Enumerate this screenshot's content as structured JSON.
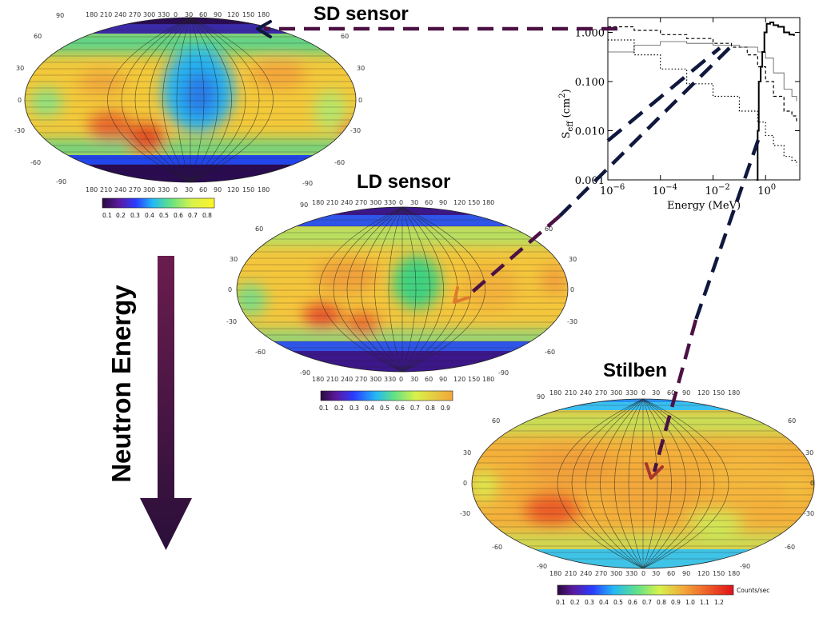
{
  "panels": {
    "sd": {
      "title": "SD sensor",
      "colorbar_ticks": [
        "0.1",
        "0.2",
        "0.3",
        "0.4",
        "0.5",
        "0.6",
        "0.7",
        "0.8"
      ]
    },
    "ld": {
      "title": "LD sensor",
      "colorbar_ticks": [
        "0.1",
        "0.2",
        "0.3",
        "0.4",
        "0.5",
        "0.6",
        "0.7",
        "0.8",
        "0.9"
      ]
    },
    "stilben": {
      "title": "Stilben",
      "colorbar_ticks": [
        "0.1",
        "0.2",
        "0.3",
        "0.4",
        "0.5",
        "0.6",
        "0.7",
        "0.8",
        "0.9",
        "1.0",
        "1.1",
        "1.2"
      ],
      "colorbar_unit": "Counts/sec"
    }
  },
  "map_axes": {
    "lon_ticks": [
      "180",
      "210",
      "240",
      "270",
      "300",
      "330",
      "0",
      "30",
      "60",
      "90",
      "120",
      "150",
      "180"
    ],
    "lat_ticks_left": [
      "90",
      "60",
      "30",
      "0",
      "-30",
      "-60",
      "-90"
    ],
    "lat_ticks_right": [
      "60",
      "30",
      "0",
      "-30",
      "-60",
      "-90"
    ]
  },
  "arrow_label": "Neutron Energy",
  "colors": {
    "arrow_top": "#6a1d4e",
    "arrow_bottom": "#2a0f3a",
    "dash_purple": "#4b1244",
    "dash_navy": "#10183e",
    "dash_orange": "#e07a2e"
  },
  "chart_data": {
    "type": "line",
    "ylabel": "S",
    "ylabel_sub": "eff",
    "ylabel_unit": "(cm",
    "ylabel_unit_sup": "2",
    "ylabel_unit_close": ")",
    "xlabel": "Energy (MeV)",
    "x_scale": "log",
    "y_scale": "log",
    "xlim": [
      1e-06,
      20
    ],
    "ylim": [
      0.001,
      2
    ],
    "x_ticks": [
      {
        "value": 1e-06,
        "base": "10",
        "exp": "−6"
      },
      {
        "value": 0.0001,
        "base": "10",
        "exp": "−4"
      },
      {
        "value": 0.01,
        "base": "10",
        "exp": "−2"
      },
      {
        "value": 1,
        "base": "10",
        "exp": "0"
      }
    ],
    "y_ticks": [
      {
        "value": 1,
        "label": "1.000"
      },
      {
        "value": 0.1,
        "label": "0.100"
      },
      {
        "value": 0.01,
        "label": "0.010"
      },
      {
        "value": 0.001,
        "label": "0.001"
      }
    ],
    "series": [
      {
        "style": "dashed",
        "points": [
          [
            1e-06,
            1.3
          ],
          [
            1e-05,
            1.1
          ],
          [
            0.0001,
            0.9
          ],
          [
            0.001,
            0.75
          ],
          [
            0.01,
            0.6
          ],
          [
            0.05,
            0.5
          ],
          [
            0.2,
            0.35
          ],
          [
            0.5,
            0.2
          ],
          [
            1,
            0.1
          ],
          [
            2,
            0.05
          ],
          [
            5,
            0.025
          ],
          [
            10,
            0.02
          ],
          [
            15,
            0.015
          ]
        ]
      },
      {
        "style": "solid-thin",
        "points": [
          [
            1e-06,
            0.4
          ],
          [
            1e-05,
            0.55
          ],
          [
            0.0001,
            0.65
          ],
          [
            0.001,
            0.6
          ],
          [
            0.01,
            0.55
          ],
          [
            0.1,
            0.5
          ],
          [
            0.5,
            0.4
          ],
          [
            1,
            0.3
          ],
          [
            2,
            0.15
          ],
          [
            5,
            0.07
          ],
          [
            10,
            0.05
          ],
          [
            15,
            0.04
          ]
        ]
      },
      {
        "style": "dotted",
        "points": [
          [
            1e-06,
            0.7
          ],
          [
            1e-05,
            0.35
          ],
          [
            0.0001,
            0.18
          ],
          [
            0.001,
            0.09
          ],
          [
            0.01,
            0.05
          ],
          [
            0.1,
            0.025
          ],
          [
            0.5,
            0.015
          ],
          [
            1,
            0.008
          ],
          [
            2,
            0.005
          ],
          [
            5,
            0.003
          ],
          [
            10,
            0.0025
          ],
          [
            15,
            0.002
          ]
        ]
      },
      {
        "style": "solid-thick",
        "points": [
          [
            0.45,
            0.001
          ],
          [
            0.5,
            0.01
          ],
          [
            0.55,
            0.1
          ],
          [
            0.65,
            0.2
          ],
          [
            0.75,
            0.4
          ],
          [
            0.9,
            1.0
          ],
          [
            1.1,
            1.5
          ],
          [
            1.5,
            1.6
          ],
          [
            2,
            1.4
          ],
          [
            3,
            1.3
          ],
          [
            5,
            1.0
          ],
          [
            8,
            0.9
          ],
          [
            12,
            0.85
          ]
        ]
      }
    ]
  }
}
